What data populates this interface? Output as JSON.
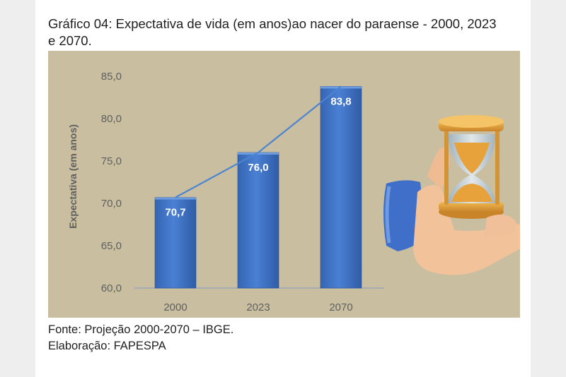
{
  "header": {
    "title_line1": "Gráfico 04: Expectativa de vida (em anos)ao nacer do paraense - 2000, 2023",
    "title_line2": "e 2070."
  },
  "footer": {
    "source": "Fonte: Projeção 2000-2070 – IBGE.",
    "credit": "Elaboração: FAPESPA"
  },
  "colors": {
    "panel_bg": "#c9bea0",
    "bar": "#3f73c8",
    "line": "#4d84d0",
    "axis_text": "#5f5f5f"
  },
  "chart_data": {
    "type": "bar",
    "categories": [
      "2000",
      "2023",
      "2070"
    ],
    "values": [
      70.7,
      76.0,
      83.8
    ],
    "value_labels": [
      "70,7",
      "76,0",
      "83,8"
    ],
    "ylabel": "Expectativa (em anos)",
    "ylim": [
      60,
      85
    ],
    "yticks": [
      "60,0",
      "65,0",
      "70,0",
      "75,0",
      "80,0",
      "85,0"
    ],
    "trend_line": true,
    "grid": false,
    "decoration": "hand-holding-hourglass-icon"
  }
}
